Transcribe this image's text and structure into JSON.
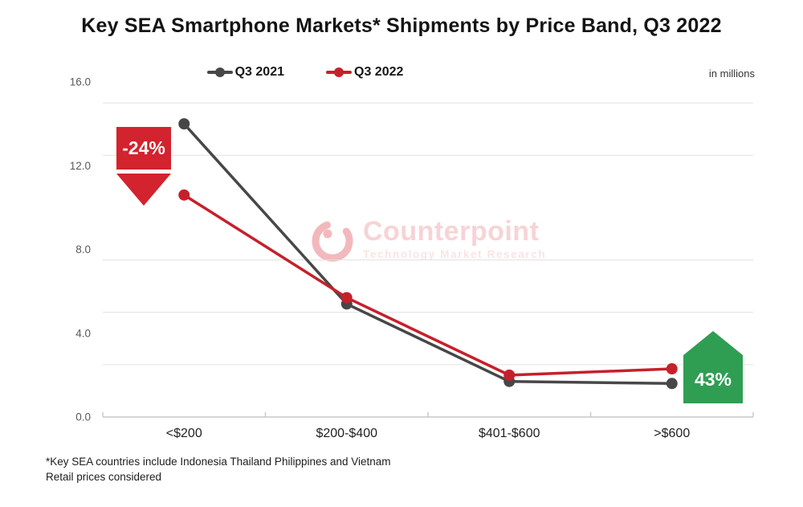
{
  "title": "Key SEA Smartphone Markets* Shipments by Price Band, Q3 2022",
  "units_label": "in millions",
  "legend": {
    "items": [
      {
        "label": "Q3 2021",
        "color": "#474747"
      },
      {
        "label": "Q3 2022",
        "color": "#C6202B"
      }
    ]
  },
  "badges": {
    "decline": {
      "label": "-24%",
      "color": "#D2232E",
      "direction": "down",
      "target_category": "<$200"
    },
    "growth": {
      "label": "43%",
      "color": "#2F9E53",
      "direction": "up",
      "target_category": ">$600"
    }
  },
  "watermark": {
    "name": "Counterpoint",
    "subtitle": "Technology Market Research",
    "color": "#D7242F"
  },
  "footnotes": [
    "*Key SEA countries include Indonesia Thailand Philippines and Vietnam",
    "Retail prices considered"
  ],
  "chart_data": {
    "type": "line",
    "title": "Key SEA Smartphone Markets* Shipments by Price Band, Q3 2022",
    "units": "in millions",
    "categories": [
      "<$200",
      "$200-$400",
      "$401-$600",
      ">$600"
    ],
    "series": [
      {
        "name": "Q3 2021",
        "color": "#474747",
        "values": [
          14.0,
          5.4,
          1.7,
          1.6
        ]
      },
      {
        "name": "Q3 2022",
        "color": "#C6202B",
        "values": [
          10.6,
          5.7,
          2.0,
          2.3
        ]
      }
    ],
    "ylim": [
      0,
      16
    ],
    "ytick_values": [
      16,
      12,
      8,
      4,
      0
    ],
    "ytick_labels": [
      "16.0",
      "12.0",
      "8.0",
      "4.0",
      "0.0"
    ],
    "gridline_values": [
      15,
      12.5,
      7.5,
      5,
      2.5
    ],
    "grid": "horizontal-only",
    "legend_position": "top-center",
    "annotations": [
      {
        "category": "<$200",
        "text": "-24%",
        "kind": "decline"
      },
      {
        "category": ">$600",
        "text": "43%",
        "kind": "growth"
      }
    ]
  }
}
